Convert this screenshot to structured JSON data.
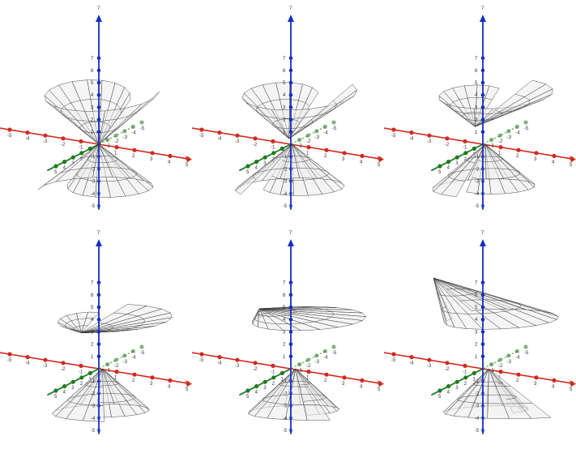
{
  "colors": {
    "x_axis": "#d22a1e",
    "y_axis": "#1e7a1e",
    "z_axis": "#1530b8",
    "surface_fill": "#ececec",
    "surface_stroke": "#3a3a3a"
  },
  "panels": [
    {
      "shift": 0.0,
      "z_top": "7",
      "z_bottom": "-5"
    },
    {
      "shift": 0.2,
      "z_top": "7",
      "z_bottom": "-5"
    },
    {
      "shift": 0.4,
      "z_top": "7",
      "z_bottom": "-5"
    },
    {
      "shift": 0.6,
      "z_top": "7",
      "z_bottom": "-5"
    },
    {
      "shift": 0.8,
      "z_top": "7",
      "z_bottom": "-5"
    },
    {
      "shift": 1.0,
      "z_top": "7",
      "z_bottom": "-5"
    }
  ],
  "x_ticks": [
    "-5",
    "-4",
    "-3",
    "-2",
    "-1",
    "1",
    "2",
    "3",
    "4",
    "5"
  ],
  "y_ticks": [
    "-5",
    "-4",
    "-3",
    "-2",
    "-1",
    "1",
    "2",
    "3",
    "4",
    "5"
  ],
  "z_ticks": [
    "7",
    "6",
    "5",
    "4",
    "3",
    "2",
    "1",
    "-1",
    "-2",
    "-3",
    "-4",
    "-5"
  ]
}
